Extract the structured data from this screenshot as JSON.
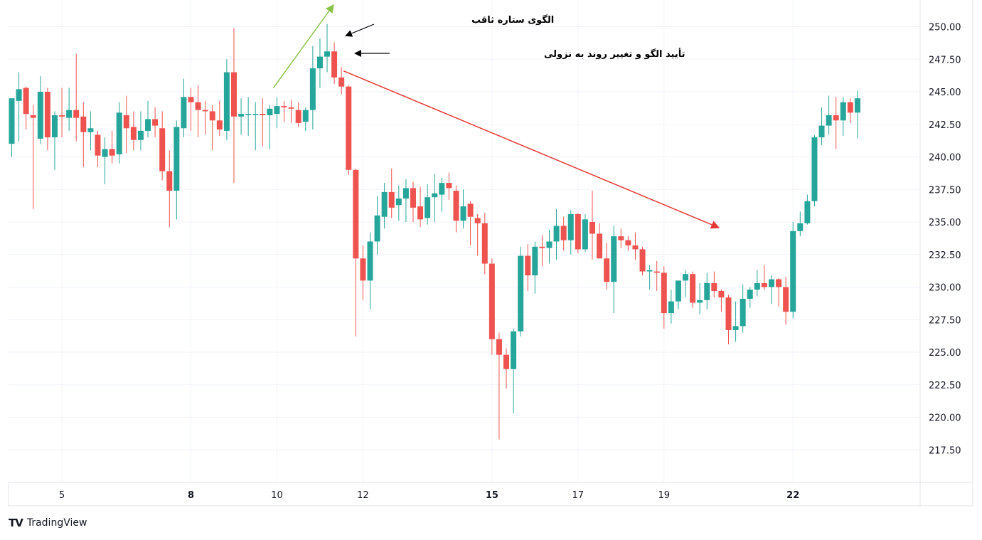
{
  "chart_data": {
    "type": "candlestick",
    "title": "",
    "xlabel": "",
    "ylabel": "",
    "ylim": [
      212.5,
      252.5
    ],
    "y_ticks": [
      "250.00",
      "247.50",
      "245.00",
      "242.50",
      "240.00",
      "237.50",
      "235.00",
      "232.50",
      "230.00",
      "227.50",
      "225.00",
      "222.50",
      "220.00",
      "217.50"
    ],
    "x_ticks": [
      {
        "label": "5",
        "index": 7,
        "bold": false
      },
      {
        "label": "8",
        "index": 25,
        "bold": true
      },
      {
        "label": "10",
        "index": 37,
        "bold": false
      },
      {
        "label": "12",
        "index": 49,
        "bold": false
      },
      {
        "label": "15",
        "index": 67,
        "bold": true
      },
      {
        "label": "17",
        "index": 79,
        "bold": false
      },
      {
        "label": "19",
        "index": 91,
        "bold": false
      },
      {
        "label": "22",
        "index": 109,
        "bold": true
      }
    ],
    "candles": [
      [
        241,
        244.5,
        240,
        244.5
      ],
      [
        244.3,
        246.5,
        241.2,
        245.2
      ],
      [
        245.3,
        245.4,
        242.1,
        243.3
      ],
      [
        243.2,
        244,
        236,
        243
      ],
      [
        241.4,
        246.2,
        241,
        245
      ],
      [
        245,
        245.3,
        240.5,
        241.5
      ],
      [
        241.5,
        243.5,
        239,
        243.2
      ],
      [
        243.2,
        245.3,
        241.5,
        243.1
      ],
      [
        243,
        245.3,
        242,
        243.6
      ],
      [
        243.6,
        247.9,
        241.2,
        243
      ],
      [
        243.1,
        244.2,
        239.2,
        241.9
      ],
      [
        241.9,
        243.5,
        240.5,
        242.2
      ],
      [
        241.7,
        242,
        239.2,
        240.1
      ],
      [
        240,
        241.5,
        237.9,
        240.6
      ],
      [
        240.6,
        242,
        239.5,
        240.1
      ],
      [
        240.2,
        244.2,
        239.5,
        243.4
      ],
      [
        243.2,
        244.7,
        240.3,
        242.2
      ],
      [
        242.3,
        243.5,
        240.5,
        241.3
      ],
      [
        241.3,
        243.5,
        240.5,
        242
      ],
      [
        242,
        244.3,
        241.5,
        242.9
      ],
      [
        242.9,
        243.8,
        241.5,
        242.4
      ],
      [
        242.2,
        243.5,
        238.2,
        238.9
      ],
      [
        238.9,
        240.5,
        234.6,
        237.4
      ],
      [
        237.4,
        242.8,
        235.2,
        242.3
      ],
      [
        242.2,
        246,
        241.5,
        244.6
      ],
      [
        244.6,
        245.3,
        242,
        244.2
      ],
      [
        244.2,
        245.5,
        241.5,
        243.6
      ],
      [
        243.6,
        244.3,
        241.7,
        243.5
      ],
      [
        243.5,
        244,
        240.5,
        242.8
      ],
      [
        242.8,
        244.3,
        241.6,
        242.1
      ],
      [
        242,
        247.5,
        241.3,
        246.5
      ],
      [
        246.5,
        249.9,
        238,
        243.1
      ],
      [
        243.1,
        244.5,
        241.7,
        243.3
      ],
      [
        243.3,
        244.6,
        241.6,
        243.3
      ],
      [
        243.3,
        244.2,
        240.5,
        243.3
      ],
      [
        243.3,
        244.5,
        240.8,
        243.2
      ],
      [
        243.2,
        244,
        240.6,
        243.7
      ],
      [
        243.3,
        244.6,
        242.2,
        243.9
      ],
      [
        243.9,
        244.3,
        242.7,
        243.8
      ],
      [
        243.8,
        244.4,
        242.6,
        243.7
      ],
      [
        243.6,
        244.2,
        242.3,
        242.6
      ],
      [
        242.7,
        243.8,
        242,
        243.6
      ],
      [
        243.6,
        248.5,
        242.1,
        246.8
      ],
      [
        246.8,
        249.1,
        245.3,
        247.7
      ],
      [
        247.7,
        250.2,
        246.5,
        248.1
      ],
      [
        248.1,
        248.8,
        245.6,
        246.1
      ],
      [
        246.1,
        246.9,
        244.8,
        245.4
      ],
      [
        245.4,
        245.5,
        238.6,
        239
      ],
      [
        239,
        239.1,
        226.2,
        232.2
      ],
      [
        232.2,
        233.2,
        229,
        230.5
      ],
      [
        230.5,
        234.2,
        228.3,
        233.5
      ],
      [
        233.5,
        237,
        232.5,
        235.5
      ],
      [
        235.4,
        238,
        234.5,
        237.3
      ],
      [
        237.3,
        239.1,
        235.3,
        236.1
      ],
      [
        236.3,
        237.8,
        235.1,
        236.8
      ],
      [
        236.8,
        238.3,
        235,
        237.6
      ],
      [
        237.6,
        238.1,
        235,
        236.1
      ],
      [
        236.2,
        237.7,
        234.6,
        235.2
      ],
      [
        235.3,
        237.9,
        234.8,
        236.9
      ],
      [
        236.9,
        238.7,
        235,
        237.2
      ],
      [
        237.1,
        238.4,
        235.8,
        238
      ],
      [
        238,
        238.8,
        236.7,
        237.6
      ],
      [
        237.4,
        237.8,
        234.2,
        235.1
      ],
      [
        235.1,
        237.5,
        234.5,
        236.2
      ],
      [
        236.4,
        236.6,
        233.2,
        235.4
      ],
      [
        235.3,
        235.6,
        232.4,
        234.9
      ],
      [
        234.9,
        235.7,
        231,
        231.8
      ],
      [
        231.8,
        232.2,
        224.8,
        226
      ],
      [
        226,
        226.5,
        218.3,
        224.8
      ],
      [
        224.8,
        225.3,
        222.2,
        223.7
      ],
      [
        223.7,
        226.8,
        220.3,
        226.6
      ],
      [
        226.6,
        233.1,
        226.2,
        232.4
      ],
      [
        232.4,
        233.3,
        229.7,
        230.9
      ],
      [
        230.9,
        233.5,
        229.5,
        233.1
      ],
      [
        233.1,
        234,
        231.6,
        233
      ],
      [
        233,
        234.4,
        231.8,
        233.5
      ],
      [
        233.5,
        236,
        232.1,
        234.7
      ],
      [
        234.7,
        235.4,
        232.8,
        233.6
      ],
      [
        233.6,
        235.9,
        232.5,
        235.6
      ],
      [
        235.6,
        235.7,
        232.6,
        232.9
      ],
      [
        232.9,
        235.6,
        232.7,
        235.2
      ],
      [
        235,
        237.4,
        232.1,
        234.1
      ],
      [
        234.1,
        234.9,
        232.2,
        232.2
      ],
      [
        232.2,
        233.4,
        229.8,
        230.4
      ],
      [
        230.4,
        234.7,
        228,
        233.9
      ],
      [
        233.9,
        234.5,
        233,
        233.6
      ],
      [
        233.6,
        233.9,
        232.8,
        233.2
      ],
      [
        233.2,
        234.2,
        232.1,
        232.9
      ],
      [
        232.9,
        233.1,
        230.9,
        231.2
      ],
      [
        231.2,
        231.7,
        229.8,
        231.3
      ],
      [
        231.2,
        232,
        229.7,
        231.1
      ],
      [
        231.1,
        231.6,
        226.8,
        228
      ],
      [
        228,
        229.8,
        227.2,
        228.9
      ],
      [
        228.9,
        230.5,
        228.3,
        230.5
      ],
      [
        230.5,
        231.3,
        229.2,
        231
      ],
      [
        231,
        231.2,
        228.4,
        228.8
      ],
      [
        228.8,
        230.3,
        227.9,
        229
      ],
      [
        229,
        231.1,
        228.3,
        230.3
      ],
      [
        230.3,
        231.2,
        229.2,
        229.7
      ],
      [
        229.7,
        229.8,
        228.1,
        229.2
      ],
      [
        229.2,
        229.4,
        225.6,
        226.7
      ],
      [
        226.7,
        228.9,
        225.8,
        227
      ],
      [
        227,
        230.2,
        226.5,
        229.1
      ],
      [
        229.1,
        230,
        228.4,
        229.8
      ],
      [
        229.8,
        231.3,
        229.3,
        230.3
      ],
      [
        230.3,
        231.7,
        229.8,
        230
      ],
      [
        230,
        230.9,
        228.7,
        230.6
      ],
      [
        230.6,
        230.7,
        228.5,
        230
      ],
      [
        230,
        230.8,
        227.1,
        228.1
      ],
      [
        228.1,
        235,
        227.6,
        234.3
      ],
      [
        234.3,
        235.8,
        233.9,
        234.9
      ],
      [
        234.9,
        237.1,
        234.8,
        236.6
      ],
      [
        236.6,
        241.7,
        236.2,
        241.5
      ],
      [
        241.5,
        243.8,
        240.9,
        242.4
      ],
      [
        242.4,
        244.7,
        241.7,
        243.2
      ],
      [
        243.2,
        244.6,
        240.6,
        242.8
      ],
      [
        242.8,
        244.6,
        241.6,
        244.2
      ],
      [
        244.2,
        244.5,
        242.6,
        243.4
      ],
      [
        243.4,
        245.1,
        241.4,
        244.5
      ]
    ],
    "annotations": [
      {
        "text": "الگوی ستاره ثاقب",
        "type": "label"
      },
      {
        "text": "تأیید الگو و تغییر روند به نزولی",
        "type": "label"
      }
    ],
    "trendlines": [
      {
        "from": [
          36.5,
          245.3
        ],
        "to": [
          44.8,
          251.6
        ],
        "color": "#8bc34a"
      },
      {
        "from": [
          46.3,
          246.6
        ],
        "to": [
          98.5,
          234.6
        ],
        "color": "#e53935"
      }
    ],
    "up_color": "#26a69a",
    "down_color": "#ef5350",
    "grid": true
  },
  "footer": {
    "logo": "TV",
    "brand": "TradingView"
  }
}
